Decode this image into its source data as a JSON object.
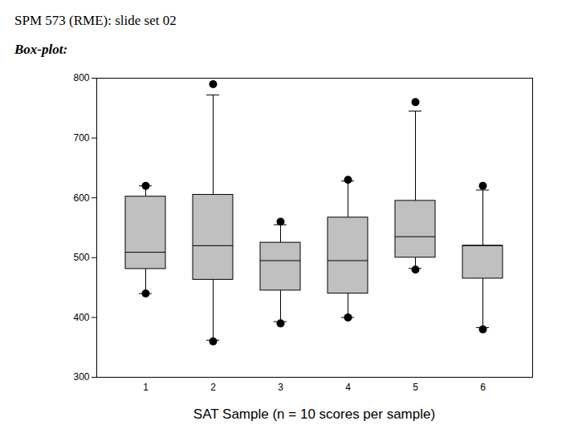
{
  "chart_data": {
    "type": "box",
    "title": "SPM 573 (RME): slide set 02",
    "subtitle": "Box-plot:",
    "x_label": "SAT Sample (n = 10 scores per sample)",
    "categories": [
      "1",
      "2",
      "3",
      "4",
      "5",
      "6"
    ],
    "q1": [
      481,
      463,
      445,
      440,
      500,
      465
    ],
    "median": [
      509,
      520,
      495,
      495,
      535,
      520
    ],
    "q3": [
      602,
      605,
      525,
      567,
      595,
      520
    ],
    "whisker_low": [
      440,
      362,
      393,
      400,
      482,
      383
    ],
    "whisker_high": [
      620,
      772,
      555,
      628,
      745,
      613
    ],
    "outliers": [
      [
        440,
        620
      ],
      [
        360,
        790
      ],
      [
        390,
        560
      ],
      [
        400,
        630
      ],
      [
        480,
        760
      ],
      [
        380,
        620
      ]
    ],
    "color": "#c0c0c0",
    "ylim": [
      300,
      800
    ],
    "yticks": [
      300,
      400,
      500,
      600,
      700,
      800
    ]
  }
}
